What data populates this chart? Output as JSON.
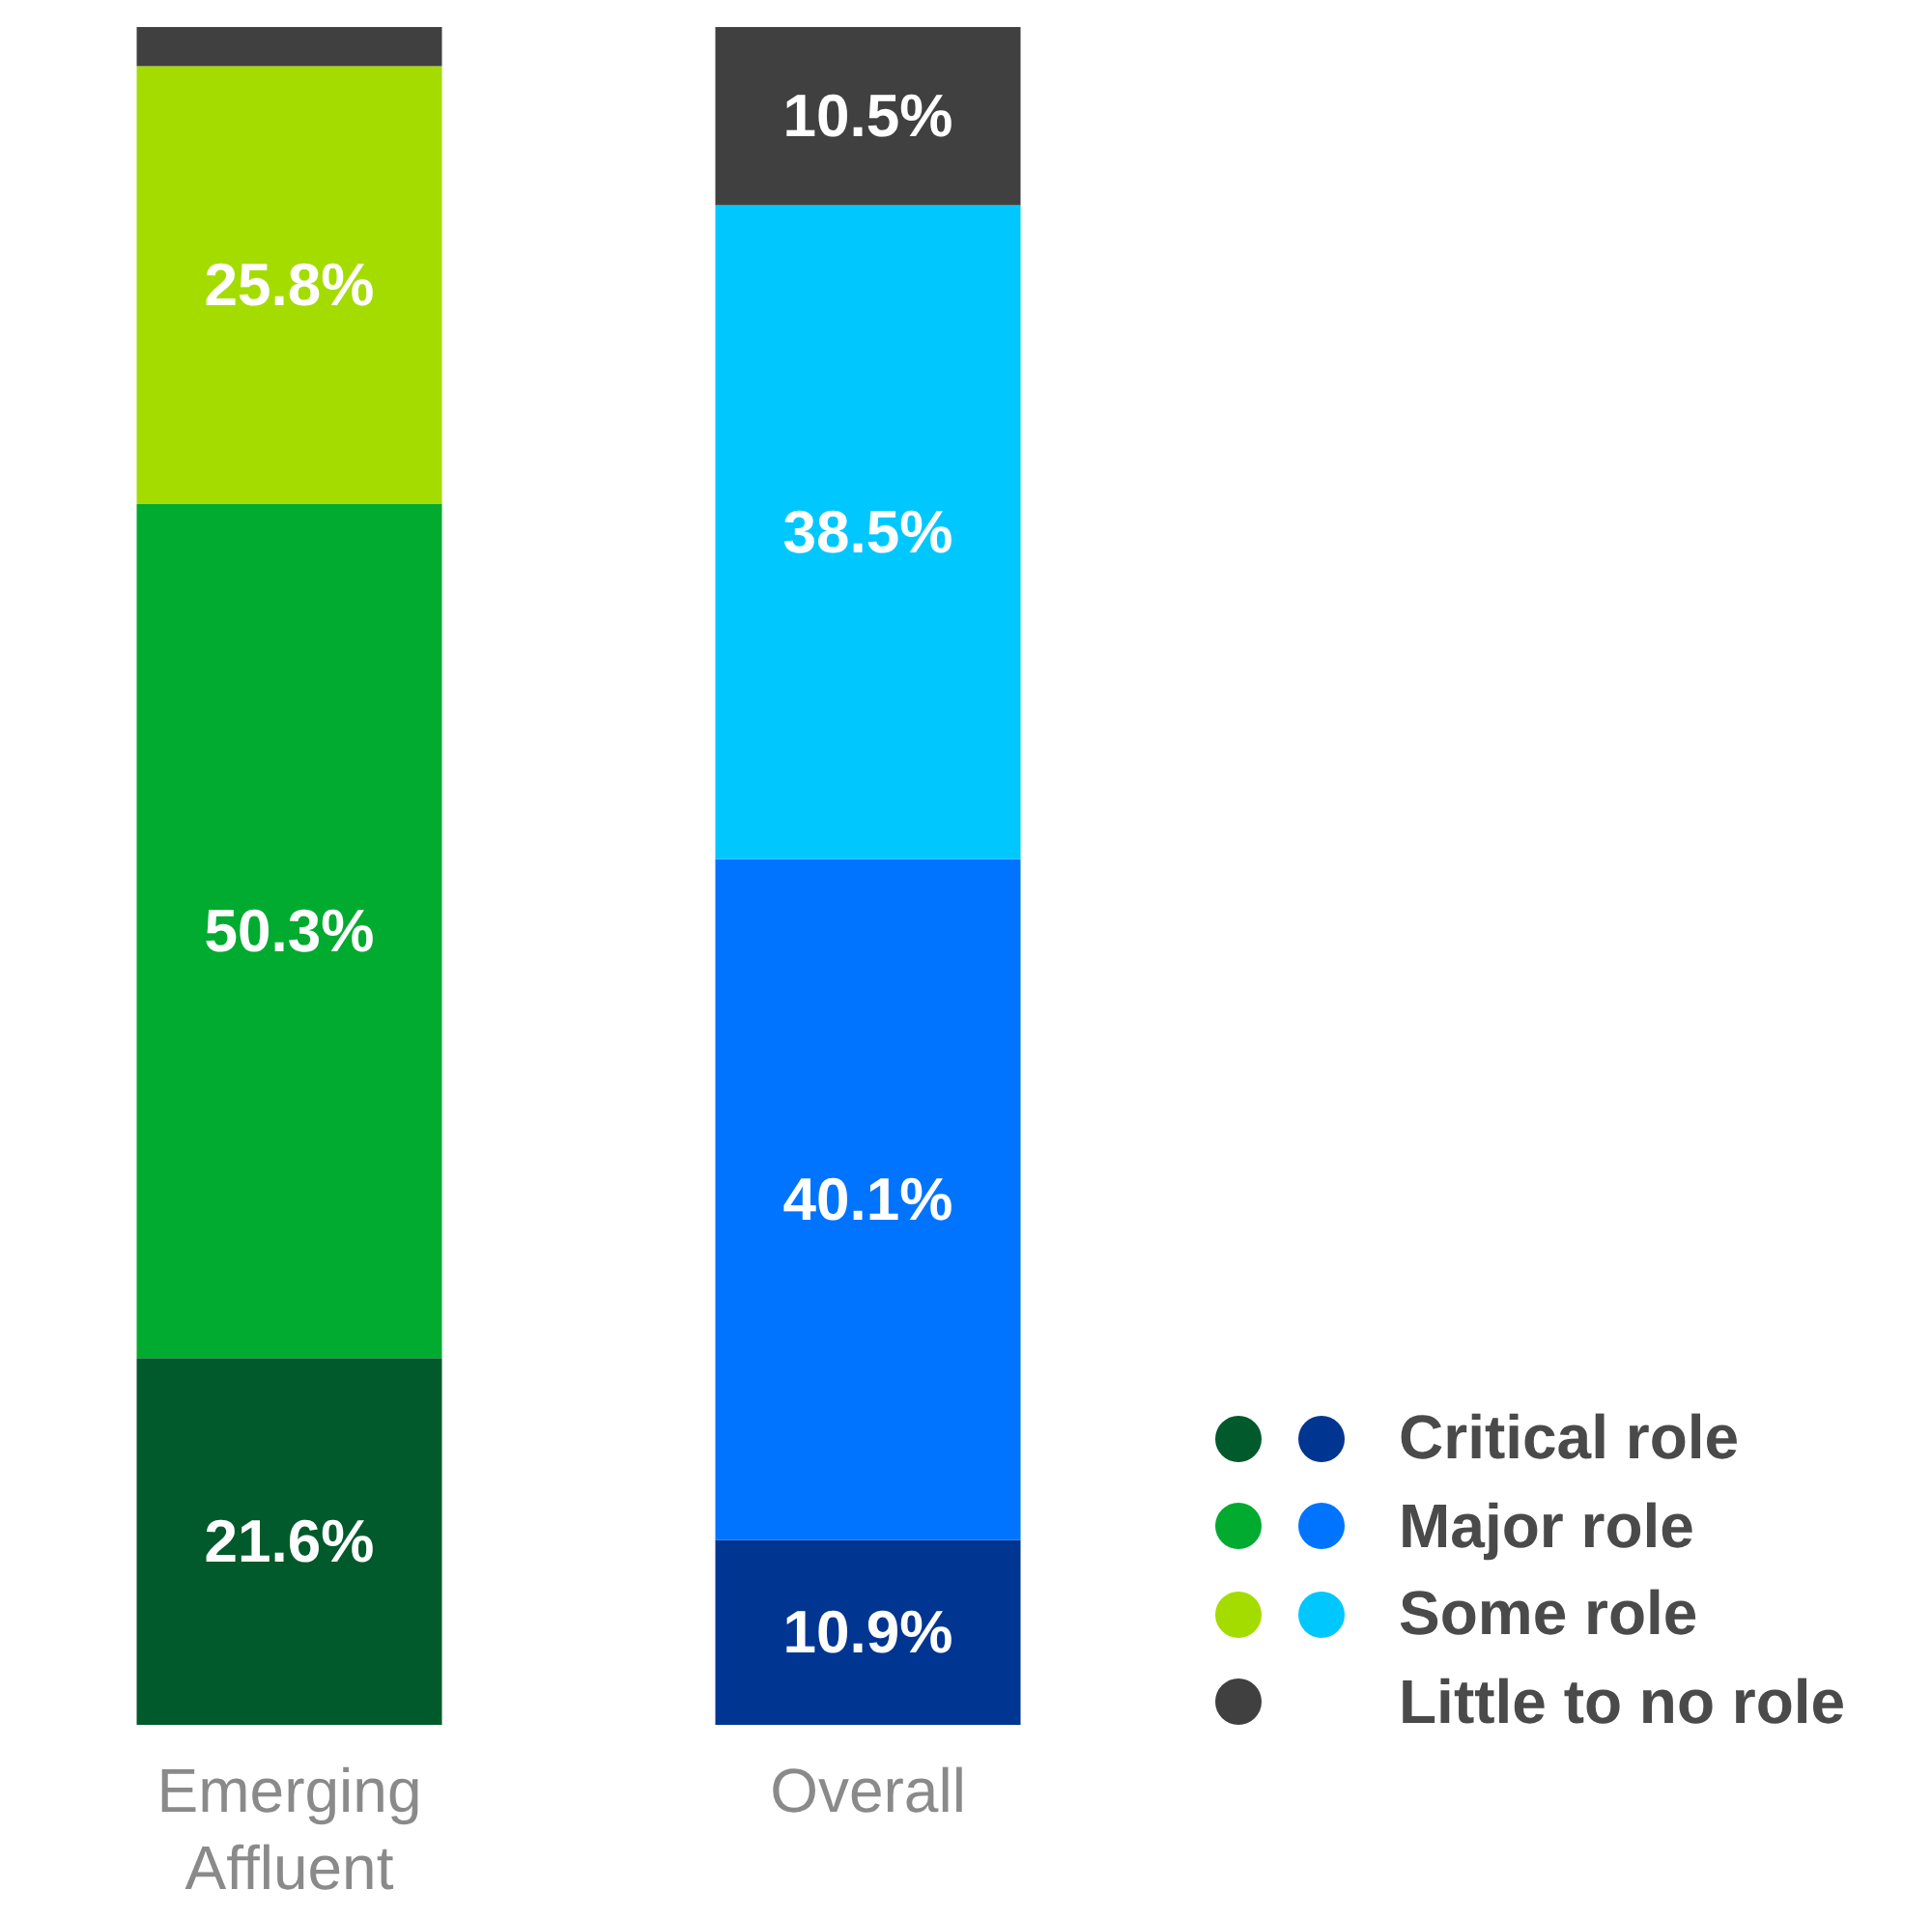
{
  "chart_data": {
    "type": "bar",
    "stacked": true,
    "categories": [
      "Emerging\nAffluent",
      "Overall"
    ],
    "legend": "bottom right",
    "series": [
      {
        "name": "Critical role",
        "colors": [
          "#005a2b",
          "#003591"
        ],
        "values": [
          21.6,
          10.9
        ],
        "value_labels": [
          "21.6%",
          "10.9%"
        ]
      },
      {
        "name": "Major role",
        "colors": [
          "#00ab30",
          "#0074ff"
        ],
        "values": [
          50.3,
          40.1
        ],
        "value_labels": [
          "50.3%",
          "40.1%"
        ]
      },
      {
        "name": "Some role",
        "colors": [
          "#a5dc00",
          "#00c8ff"
        ],
        "values": [
          25.8,
          38.5
        ],
        "value_labels": [
          "25.8%",
          "38.5%"
        ]
      },
      {
        "name": "Little to no role",
        "colors": [
          "#404040",
          "#404040"
        ],
        "values": [
          2.3,
          10.5
        ],
        "value_labels": [
          null,
          "10.5%"
        ]
      }
    ]
  }
}
